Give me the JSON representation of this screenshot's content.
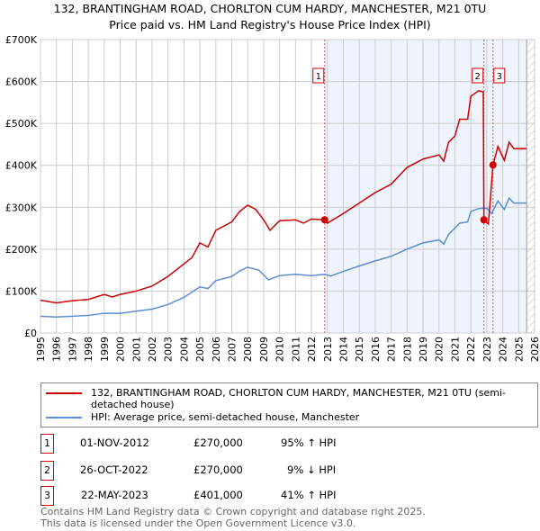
{
  "chart_data": {
    "type": "line",
    "title": "132, BRANTINGHAM ROAD, CHORLTON CUM HARDY, MANCHESTER, M21 0TU",
    "subtitle": "Price paid vs. HM Land Registry's House Price Index (HPI)",
    "xlim": [
      1995,
      2026
    ],
    "ylim": [
      0,
      700000
    ],
    "x_ticks": [
      "1995",
      "1996",
      "1997",
      "1998",
      "1999",
      "2000",
      "2001",
      "2002",
      "2003",
      "2004",
      "2005",
      "2006",
      "2007",
      "2008",
      "2009",
      "2010",
      "2011",
      "2012",
      "2013",
      "2014",
      "2015",
      "2016",
      "2017",
      "2018",
      "2019",
      "2020",
      "2021",
      "2022",
      "2023",
      "2024",
      "2025",
      "2026"
    ],
    "y_ticks": [
      {
        "v": 0,
        "label": "£0"
      },
      {
        "v": 100000,
        "label": "£100K"
      },
      {
        "v": 200000,
        "label": "£200K"
      },
      {
        "v": 300000,
        "label": "£300K"
      },
      {
        "v": 400000,
        "label": "£400K"
      },
      {
        "v": 500000,
        "label": "£500K"
      },
      {
        "v": 600000,
        "label": "£600K"
      },
      {
        "v": 700000,
        "label": "£700K"
      }
    ],
    "grid": true,
    "shaded_range": [
      2012.83,
      2025.5
    ],
    "series": [
      {
        "name": "132, BRANTINGHAM ROAD, CHORLTON CUM HARDY, MANCHESTER, M21 0TU (semi-detached house)",
        "color": "#cc0000",
        "x": [
          1995,
          1996,
          1997,
          1998,
          1999,
          1999.5,
          2000,
          2001,
          2002,
          2003,
          2004,
          2004.5,
          2005,
          2005.5,
          2006,
          2007,
          2007.5,
          2008,
          2008.5,
          2009,
          2009.4,
          2010,
          2011,
          2011.5,
          2012,
          2012.83,
          2013,
          2014,
          2015,
          2016,
          2017,
          2018,
          2019,
          2020,
          2020.3,
          2020.6,
          2021,
          2021.3,
          2021.8,
          2022,
          2022.5,
          2022.78,
          2022.82,
          2023.1,
          2023.39,
          2023.7,
          2024.1,
          2024.4,
          2024.7,
          2025.5
        ],
        "y": [
          78000,
          72000,
          77000,
          80000,
          92000,
          86000,
          92000,
          100000,
          112000,
          135000,
          165000,
          180000,
          215000,
          205000,
          245000,
          265000,
          290000,
          305000,
          295000,
          270000,
          245000,
          268000,
          270000,
          262000,
          272000,
          270000,
          262000,
          285000,
          310000,
          335000,
          355000,
          395000,
          415000,
          425000,
          410000,
          455000,
          470000,
          510000,
          510000,
          565000,
          578000,
          575000,
          270000,
          260000,
          401000,
          445000,
          412000,
          455000,
          440000,
          440000
        ]
      },
      {
        "name": "HPI: Average price, semi-detached house, Manchester",
        "color": "#5b8fd4",
        "x": [
          1995,
          1996,
          1997,
          1998,
          1999,
          2000,
          2001,
          2002,
          2003,
          2004,
          2005,
          2005.5,
          2006,
          2007,
          2007.5,
          2008,
          2008.7,
          2009.3,
          2010,
          2011,
          2012,
          2012.83,
          2013.2,
          2014,
          2015,
          2016,
          2017,
          2018,
          2019,
          2020,
          2020.3,
          2020.6,
          2021.3,
          2021.8,
          2022,
          2022.5,
          2023,
          2023.3,
          2023.7,
          2024.1,
          2024.4,
          2024.7,
          2025.5
        ],
        "y": [
          40000,
          38000,
          40000,
          42000,
          47000,
          47000,
          52000,
          57000,
          68000,
          85000,
          110000,
          106000,
          125000,
          135000,
          148000,
          157000,
          150000,
          127000,
          137000,
          140000,
          137000,
          140000,
          136000,
          147000,
          160000,
          172000,
          183000,
          200000,
          215000,
          222000,
          212000,
          235000,
          262000,
          265000,
          290000,
          297000,
          298000,
          285000,
          315000,
          295000,
          322000,
          310000,
          310000
        ]
      }
    ],
    "sales": [
      {
        "id": "1",
        "x": 2012.83,
        "y": 270000,
        "date": "01-NOV-2012",
        "price": "£270,000",
        "hpi": "95% ↑ HPI"
      },
      {
        "id": "2",
        "x": 2022.82,
        "y": 270000,
        "date": "26-OCT-2022",
        "price": "£270,000",
        "hpi": "9% ↓ HPI"
      },
      {
        "id": "3",
        "x": 2023.39,
        "y": 401000,
        "date": "22-MAY-2023",
        "price": "£401,000",
        "hpi": "41% ↑ HPI"
      }
    ],
    "legend_position": "below"
  },
  "footer": {
    "line1": "Contains HM Land Registry data © Crown copyright and database right 2025.",
    "line2": "This data is licensed under the Open Government Licence v3.0."
  }
}
